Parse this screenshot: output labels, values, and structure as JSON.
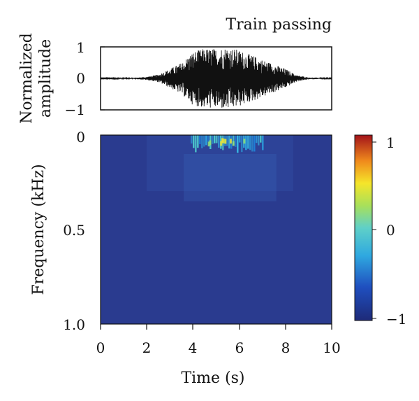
{
  "chart_data": [
    {
      "type": "line",
      "title": "Train passing",
      "ylabel_lines": [
        "Normalized",
        "amplitude"
      ],
      "ylim": [
        -1,
        1
      ],
      "yticks": [
        "1",
        "0",
        "−1"
      ],
      "xlim": [
        0,
        10
      ],
      "series": [
        {
          "envelope": {
            "x": [
              0,
              1.5,
              2.0,
              2.5,
              3.0,
              3.5,
              4.0,
              4.5,
              5.0,
              5.5,
              6.0,
              6.5,
              7.0,
              7.5,
              8.0,
              8.5,
              9.0,
              10
            ],
            "amplitude": [
              0.01,
              0.02,
              0.05,
              0.12,
              0.3,
              0.5,
              0.85,
              0.95,
              0.95,
              1.0,
              0.9,
              0.75,
              0.6,
              0.45,
              0.3,
              0.1,
              0.03,
              0.01
            ]
          }
        }
      ]
    },
    {
      "type": "heatmap",
      "xlabel": "Time (s)",
      "ylabel": "Frequency (kHz)",
      "xlim": [
        0,
        10
      ],
      "ylim": [
        0,
        1.0
      ],
      "y_inverted": true,
      "xticks": [
        "0",
        "2",
        "4",
        "6",
        "8",
        "10"
      ],
      "yticks": [
        "0",
        "0.5",
        "1.0"
      ],
      "colorbar": {
        "range": [
          -1,
          1
        ],
        "ticks": [
          "1",
          "0",
          "−1"
        ],
        "colormap": "jet",
        "base_color": "#2a3b8f"
      },
      "hotspot": {
        "time_range": [
          3.9,
          7.0
        ],
        "frequency_range": [
          0,
          0.1
        ],
        "peak_value": 0.35
      }
    }
  ]
}
